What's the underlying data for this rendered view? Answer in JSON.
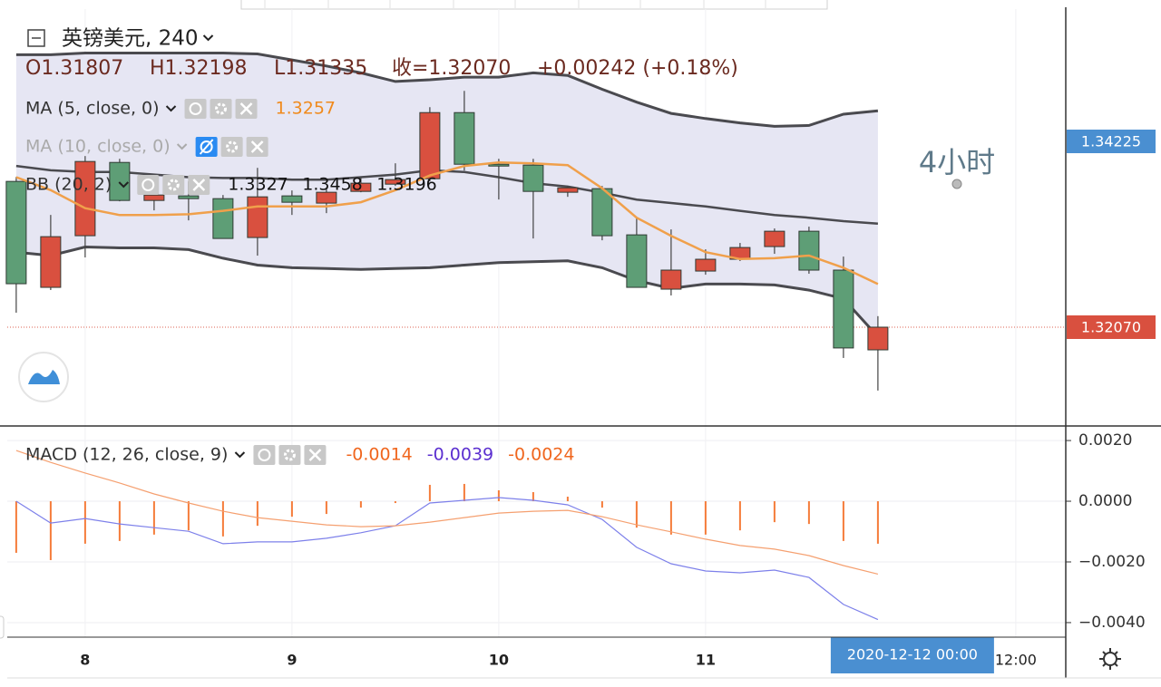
{
  "chart_data": [
    {
      "type": "candlestick",
      "title": "英镑美元, 240",
      "ohlc_legend": [
        "O1.31807",
        "H1.32198",
        "L1.31335",
        "收=1.32070",
        "+0.00242 (+0.18%)"
      ],
      "annotation": "4小时",
      "categories": [
        null,
        null,
        null,
        null,
        null,
        null,
        null,
        null,
        null,
        null,
        null,
        null,
        null,
        null,
        null,
        null,
        null,
        null,
        null,
        null,
        null,
        null,
        null,
        null,
        null,
        null
      ],
      "open": [
        1.33761,
        1.32532,
        1.33131,
        1.33981,
        1.3354,
        1.33593,
        1.33561,
        1.3311,
        1.33593,
        1.33509,
        1.33645,
        1.33729,
        1.33792,
        1.34559,
        1.3396,
        1.3395,
        1.33635,
        1.33677,
        1.33141,
        1.32511,
        1.32721,
        1.32858,
        1.33005,
        1.33183,
        1.32732,
        1.31807
      ],
      "high": [
        1.33813,
        1.33372,
        1.34055,
        1.34023,
        1.33656,
        1.33761,
        1.33603,
        1.33918,
        1.33656,
        1.33687,
        1.33813,
        1.33971,
        1.34622,
        1.34811,
        1.34023,
        1.34023,
        1.33708,
        1.33708,
        1.3333,
        1.33204,
        1.32973,
        1.33047,
        1.33215,
        1.33236,
        1.32889,
        1.32198
      ],
      "low": [
        1.32238,
        1.32501,
        1.32879,
        1.3353,
        1.33425,
        1.33309,
        1.33099,
        1.329,
        1.33372,
        1.33393,
        1.33635,
        1.33708,
        1.33761,
        1.33887,
        1.33551,
        1.33099,
        1.33582,
        1.33078,
        1.32532,
        1.32438,
        1.32679,
        1.32837,
        1.32921,
        1.3269,
        1.31713,
        1.31335
      ],
      "close": [
        1.32574,
        1.3312,
        1.33992,
        1.3354,
        1.33603,
        1.33561,
        1.33099,
        1.33582,
        1.33519,
        1.33635,
        1.3374,
        1.33782,
        1.34559,
        1.3396,
        1.33939,
        1.33645,
        1.33687,
        1.33131,
        1.32532,
        1.32732,
        1.32858,
        1.32994,
        1.33183,
        1.32732,
        1.31829,
        1.3207
      ],
      "up_color": "#d9503f",
      "down_color": "#5e9e76",
      "indicators": [
        {
          "name": "MA (5, close, 0)",
          "color": "#f0a04b",
          "label_color": "#f08a1c",
          "values": [
            1.3381,
            1.3366,
            1.3345,
            1.3337,
            1.3337,
            1.3338,
            1.3342,
            1.3347,
            1.3347,
            1.3347,
            1.3352,
            1.3366,
            1.3383,
            1.3394,
            1.3398,
            1.3397,
            1.3395,
            1.3368,
            1.3334,
            1.3313,
            1.3294,
            1.3286,
            1.3287,
            1.329,
            1.3276,
            1.3257
          ]
        },
        {
          "name": "MA (10, close, 0)",
          "hidden": true
        },
        {
          "name": "BB (20, 2)",
          "color": "#4a4a4f",
          "fill": "#e6e6f3",
          "middle": [
            1.3394,
            1.3389,
            1.3387,
            1.3387,
            1.3384,
            1.3381,
            1.338,
            1.338,
            1.3378,
            1.3378,
            1.3381,
            1.3384,
            1.3389,
            1.3387,
            1.3381,
            1.3374,
            1.337,
            1.3363,
            1.3355,
            1.3351,
            1.3347,
            1.3342,
            1.3337,
            1.3334,
            1.333,
            1.3327
          ],
          "upper": [
            1.3523,
            1.3523,
            1.3525,
            1.3525,
            1.3525,
            1.3525,
            1.3525,
            1.3524,
            1.3517,
            1.351,
            1.3502,
            1.3492,
            1.3494,
            1.3497,
            1.3497,
            1.3502,
            1.3499,
            1.3483,
            1.3468,
            1.3455,
            1.3449,
            1.3444,
            1.344,
            1.3441,
            1.3454,
            1.3458
          ],
          "lower": [
            1.3294,
            1.329,
            1.33,
            1.3299,
            1.3299,
            1.3297,
            1.3287,
            1.3279,
            1.3276,
            1.3275,
            1.3274,
            1.3275,
            1.3276,
            1.3279,
            1.3282,
            1.3283,
            1.3284,
            1.3276,
            1.3261,
            1.3252,
            1.3257,
            1.3257,
            1.3256,
            1.325,
            1.324,
            1.3196
          ]
        }
      ],
      "xlim": [
        -0.26,
        30.45
      ],
      "ylim": [
        1.30924,
        1.3576
      ],
      "yticks": [
        1.34225,
        {
          "value": 1.3207,
          "label": "1.32070"
        }
      ],
      "ytick_colors": [
        "#4a8fd1",
        "#d9503f"
      ]
    },
    {
      "type": "combo",
      "title": "MACD (12, 26, close, 9)",
      "series": [
        {
          "kind": "bar",
          "color": "#f57c3a",
          "label_color": "#f0661e",
          "values": [
            -0.0017,
            -0.00194,
            -0.0014,
            -0.00131,
            -0.0011,
            -0.00096,
            -0.00116,
            -0.00081,
            -0.00051,
            -0.00042,
            -0.00021,
            -6e-05,
            0.00054,
            0.00057,
            0.00036,
            0.0003,
            0.00015,
            -0.00021,
            -0.00087,
            -0.0011,
            -0.0011,
            -0.00096,
            -0.00069,
            -0.00075,
            -0.00131,
            -0.0014
          ]
        },
        {
          "kind": "line",
          "color": "#7d80ea",
          "label_color": "#5b2fd0",
          "values": [
            0,
            -0.00072,
            -0.00057,
            -0.00075,
            -0.00087,
            -0.00099,
            -0.0014,
            -0.00134,
            -0.00134,
            -0.00122,
            -0.00104,
            -0.00081,
            -6e-05,
            3e-05,
            0.00012,
            3e-05,
            -0.00012,
            -0.0006,
            -0.00152,
            -0.00206,
            -0.0023,
            -0.00236,
            -0.00227,
            -0.00251,
            -0.0034,
            -0.0039
          ]
        },
        {
          "kind": "line",
          "color": "#f5a070",
          "label_color": "#f0661e",
          "values": [
            0.00167,
            0.00128,
            0.00093,
            0.0006,
            0.00024,
            -6e-05,
            -0.00033,
            -0.00054,
            -0.00066,
            -0.00078,
            -0.00084,
            -0.00081,
            -0.00069,
            -0.00054,
            -0.00039,
            -0.00033,
            -0.0003,
            -0.00051,
            -0.00078,
            -0.00101,
            -0.00125,
            -0.00146,
            -0.00158,
            -0.00179,
            -0.00212,
            -0.0024
          ]
        }
      ],
      "xlim": [
        -0.26,
        30.45
      ],
      "ylim": [
        -0.00439,
        0.00248
      ],
      "yticks": [
        {
          "value": 0.002,
          "label": "0.0020"
        },
        {
          "value": 0,
          "label": "0.0000"
        },
        {
          "value": -0.002,
          "label": "−0.0020"
        },
        {
          "value": -0.004,
          "label": "−0.0040"
        }
      ],
      "xticks": [
        {
          "value": 2,
          "label": "8"
        },
        {
          "value": 8,
          "label": "9"
        },
        {
          "value": 14,
          "label": "10"
        },
        {
          "value": 20,
          "label": "11"
        },
        {
          "value": 26,
          "label": "2020-12-12   00:00"
        },
        {
          "value": 29,
          "label": "12:00"
        }
      ],
      "crosshair_tick": 4,
      "crosshair_color": "#4a8fd1"
    }
  ]
}
